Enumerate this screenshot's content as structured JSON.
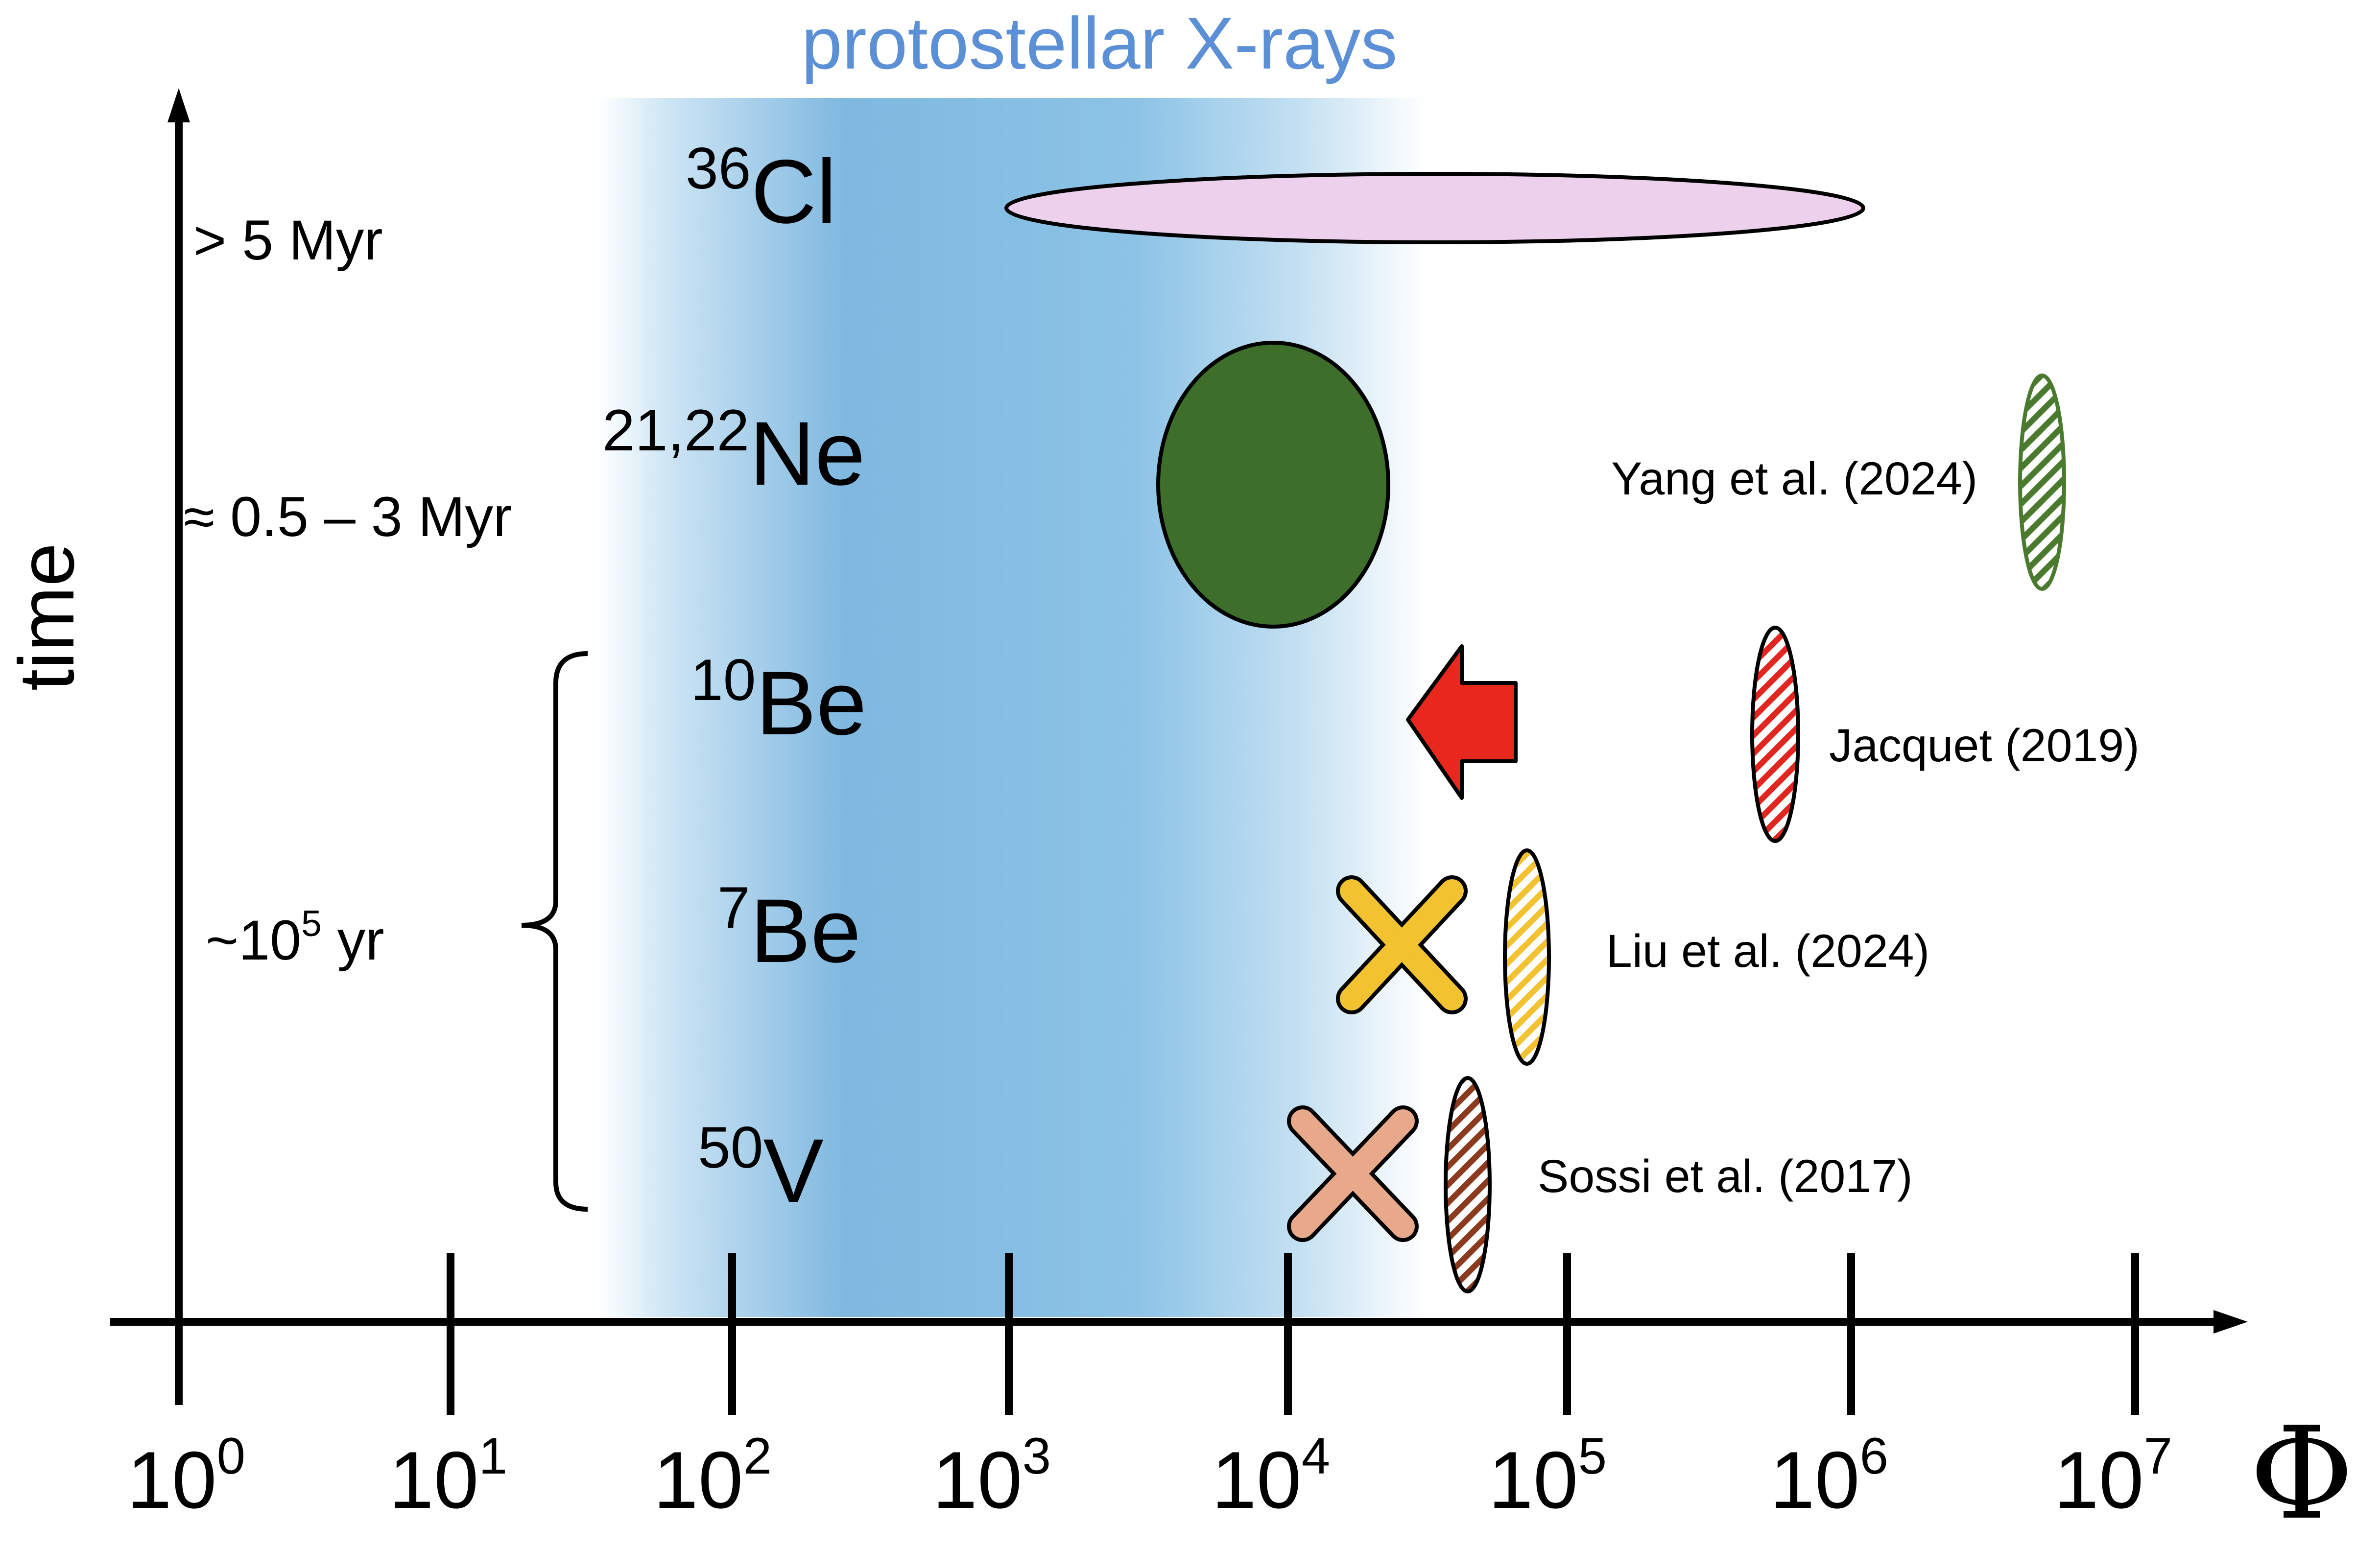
{
  "title": "protostellar X-rays",
  "y_axis": {
    "label": "time",
    "time_labels": [
      {
        "prefix": "> 5 Myr",
        "sup": "",
        "suffix": ""
      },
      {
        "prefix": "≈ 0.5 – 3 Myr",
        "sup": "",
        "suffix": ""
      },
      {
        "prefix": "~10",
        "sup": "5",
        "suffix": " yr"
      }
    ]
  },
  "x_axis": {
    "label": "Φ",
    "scale": "log",
    "ticks": [
      {
        "base": "10",
        "exp": "0"
      },
      {
        "base": "10",
        "exp": "1"
      },
      {
        "base": "10",
        "exp": "2"
      },
      {
        "base": "10",
        "exp": "3"
      },
      {
        "base": "10",
        "exp": "4"
      },
      {
        "base": "10",
        "exp": "5"
      },
      {
        "base": "10",
        "exp": "6"
      },
      {
        "base": "10",
        "exp": "7"
      }
    ]
  },
  "isotopes": [
    {
      "mass": "36",
      "symbol": "Cl"
    },
    {
      "mass": "21,22",
      "symbol": "Ne"
    },
    {
      "mass": "10",
      "symbol": "Be"
    },
    {
      "mass": "7",
      "symbol": "Be"
    },
    {
      "mass": "50",
      "symbol": "V"
    }
  ],
  "references": [
    {
      "label": "Yang et al. (2024)",
      "color": "#4a7a2e"
    },
    {
      "label": "Jacquet (2019)",
      "color": "#e0261e"
    },
    {
      "label": "Liu et al. (2024)",
      "color": "#f2c230"
    },
    {
      "label": "Sossi et al. (2017)",
      "color": "#8b3a1e"
    }
  ],
  "colors": {
    "title": "#5b8fd6",
    "band": "#8cc3e6",
    "cl36_ellipse": "#ecd0ec",
    "ne_ellipse": "#3e6f2a",
    "be10_arrow": "#e8281d",
    "be7_cross": "#f2c230",
    "v50_cross": "#e8a88a"
  }
}
